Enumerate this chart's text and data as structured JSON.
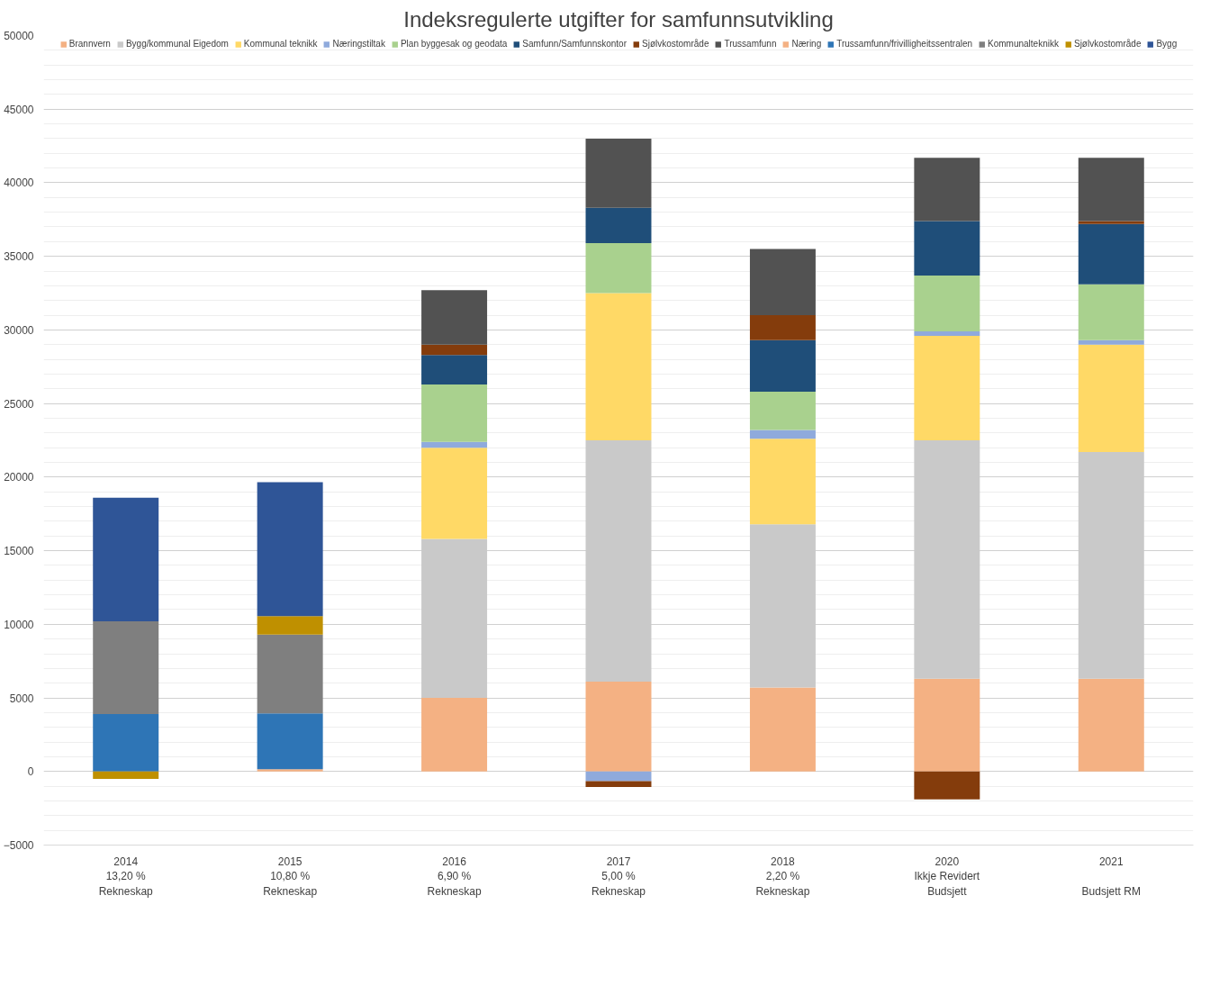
{
  "chart_data": {
    "type": "bar",
    "stacked": true,
    "title": "Indeksregulerte utgifter for samfunnsutvikling",
    "categories": [
      "2014\n13,20 %\nRekneskap",
      "2015\n10,80 %\nRekneskap",
      "2016\n6,90 %\nRekneskap",
      "2017\n5,00 %\nRekneskap",
      "2018\n2,20 %\nRekneskap",
      "2020\nIkkje Revidert\nBudsjett",
      "2021\n\nBudsjett RM"
    ],
    "ylim": [
      -5000,
      50000
    ],
    "yticks": [
      -5000,
      0,
      5000,
      10000,
      15000,
      20000,
      25000,
      30000,
      35000,
      40000,
      45000,
      50000
    ],
    "grid": "y",
    "legend": "top",
    "series": [
      {
        "name": "Brannvern",
        "color": "#f4b183",
        "values": [
          null,
          null,
          5000,
          6100,
          5700,
          6300,
          6300
        ]
      },
      {
        "name": "Bygg/kommunal Eigedom",
        "color": "#c9c9c9",
        "values": [
          null,
          null,
          10800,
          16400,
          11100,
          16200,
          15400
        ]
      },
      {
        "name": "Kommunal teknikk",
        "color": "#ffd966",
        "values": [
          null,
          null,
          6200,
          10000,
          5800,
          7100,
          7300
        ]
      },
      {
        "name": "Næringstiltak",
        "color": "#8faadc",
        "values": [
          null,
          null,
          400,
          -650,
          600,
          300,
          300
        ]
      },
      {
        "name": "Plan byggesak og geodata",
        "color": "#a9d18e",
        "values": [
          null,
          null,
          3900,
          3400,
          2600,
          3800,
          3800
        ]
      },
      {
        "name": "Samfunn/Samfunnskontor",
        "color": "#1f4e79",
        "values": [
          null,
          null,
          2000,
          2400,
          3500,
          3700,
          4100
        ]
      },
      {
        "name": "Sjølvkostområde",
        "color": "#843c0c",
        "values": [
          null,
          null,
          700,
          -400,
          1700,
          -1900,
          200
        ]
      },
      {
        "name": "Trussamfunn",
        "color": "#525252",
        "values": [
          null,
          null,
          3700,
          4700,
          4500,
          4300,
          4300
        ]
      },
      {
        "name": "Næring",
        "color": "#f4b183",
        "values": [
          null,
          150,
          null,
          null,
          null,
          null,
          null
        ]
      },
      {
        "name": "Trussamfunn/frivilligheitssentralen",
        "color": "#2e75b6",
        "values": [
          3900,
          3800,
          null,
          null,
          null,
          null,
          null
        ]
      },
      {
        "name": "Kommunalteknikk",
        "color": "#7f7f7f",
        "values": [
          6300,
          5350,
          null,
          null,
          null,
          null,
          null
        ]
      },
      {
        "name": "Sjølvkostområde",
        "color": "#bf9000",
        "values": [
          -500,
          1250,
          null,
          null,
          null,
          null,
          null
        ]
      },
      {
        "name": "Bygg",
        "color": "#2f5597",
        "values": [
          8400,
          9100,
          null,
          null,
          null,
          null,
          null
        ]
      }
    ]
  }
}
